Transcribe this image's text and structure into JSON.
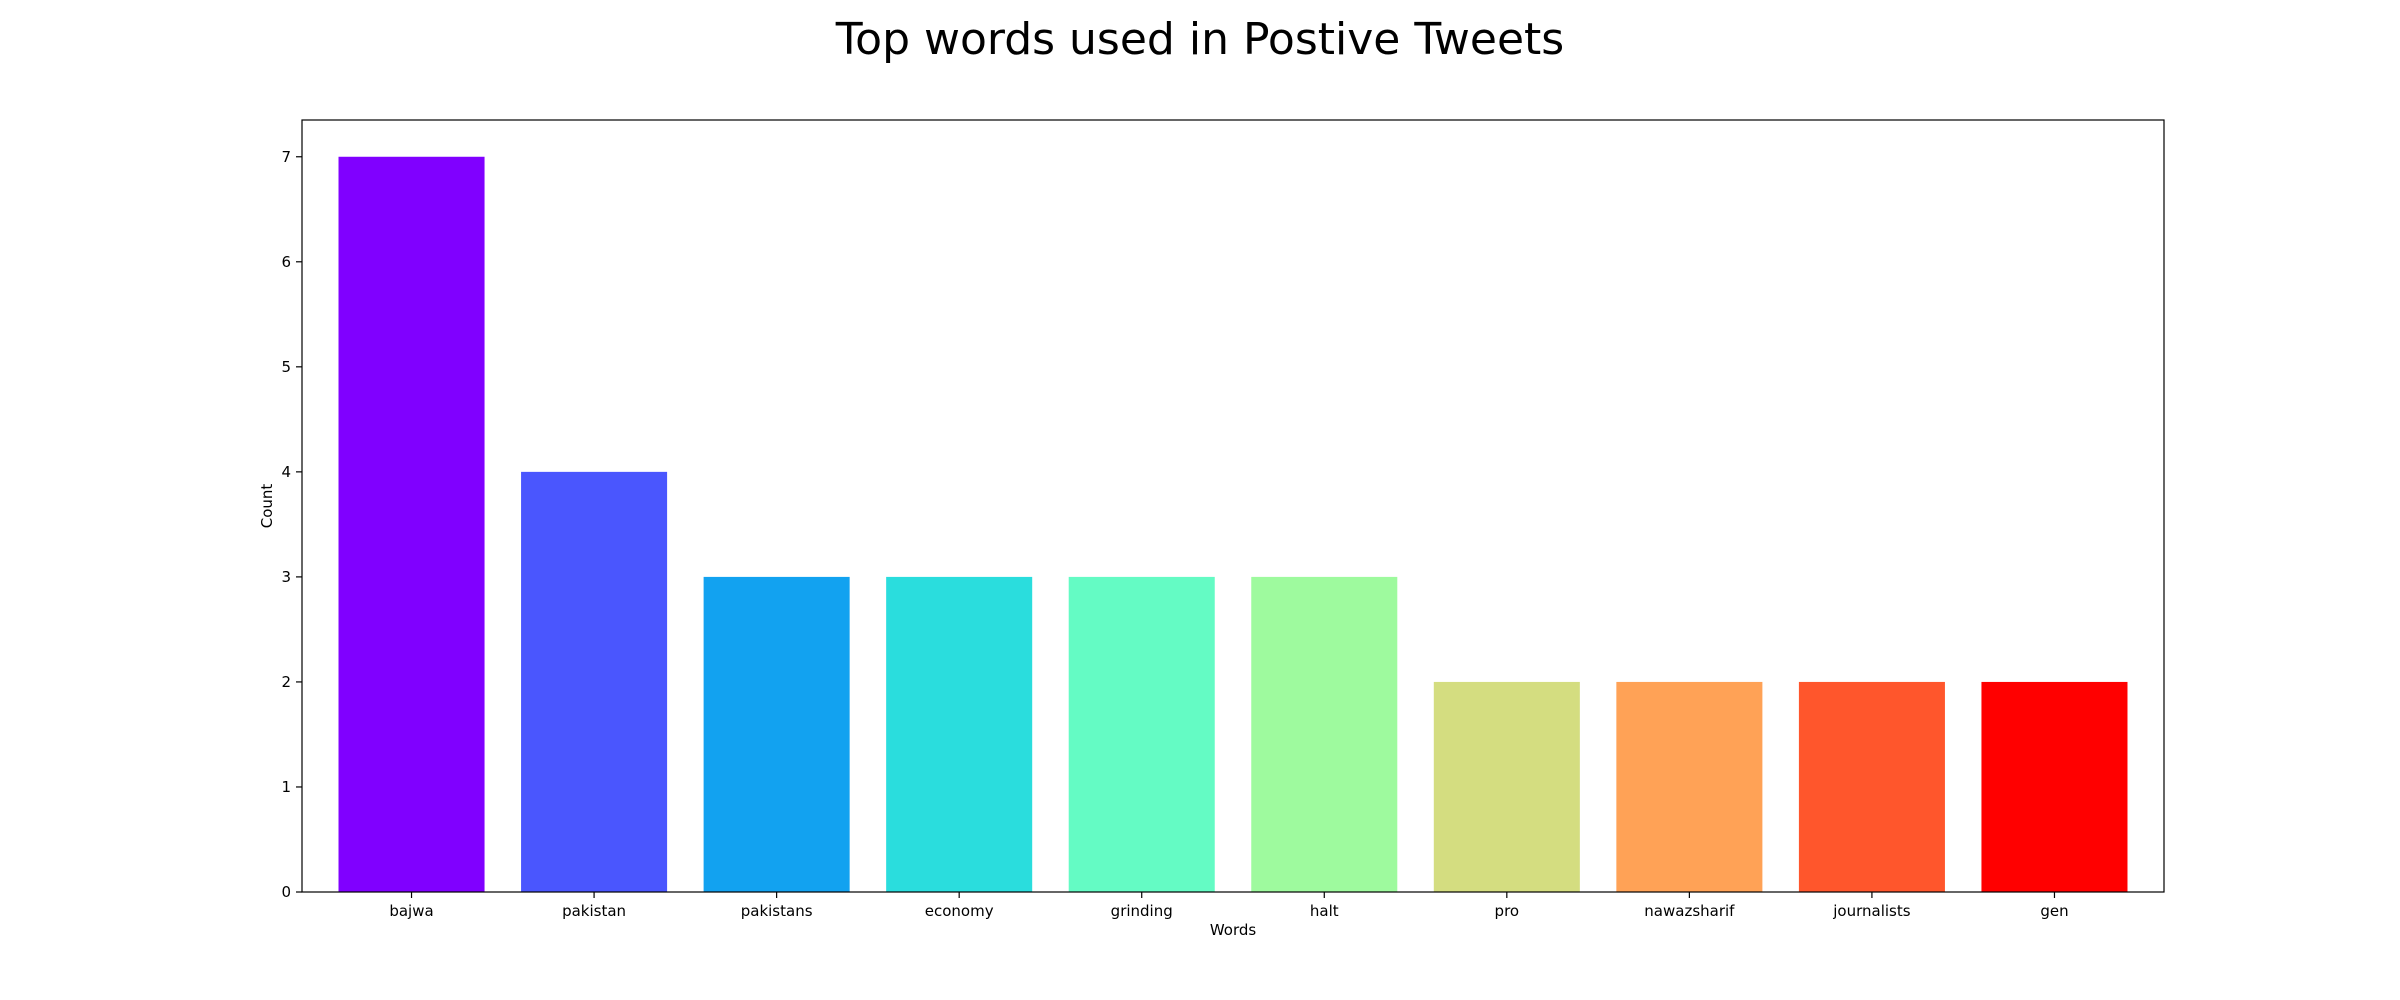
{
  "chart_data": {
    "type": "bar",
    "title": "Top words used in Postive Tweets",
    "xlabel": "Words",
    "ylabel": "Count",
    "categories": [
      "bajwa",
      "pakistan",
      "pakistans",
      "economy",
      "grinding",
      "halt",
      "pro",
      "nawazsharif",
      "journalists",
      "gen"
    ],
    "values": [
      7,
      4,
      3,
      3,
      3,
      3,
      2,
      2,
      2,
      2
    ],
    "colors": [
      "#8000ff",
      "#4a56fe",
      "#12a2f0",
      "#2adddd",
      "#64fbc4",
      "#9efa9e",
      "#d4dd80",
      "#ffa256",
      "#ff562c",
      "#ff0000"
    ],
    "ylim": [
      0,
      7.35
    ],
    "yticks": [
      0,
      1,
      2,
      3,
      4,
      5,
      6,
      7
    ],
    "grid": false,
    "legend": "none"
  }
}
